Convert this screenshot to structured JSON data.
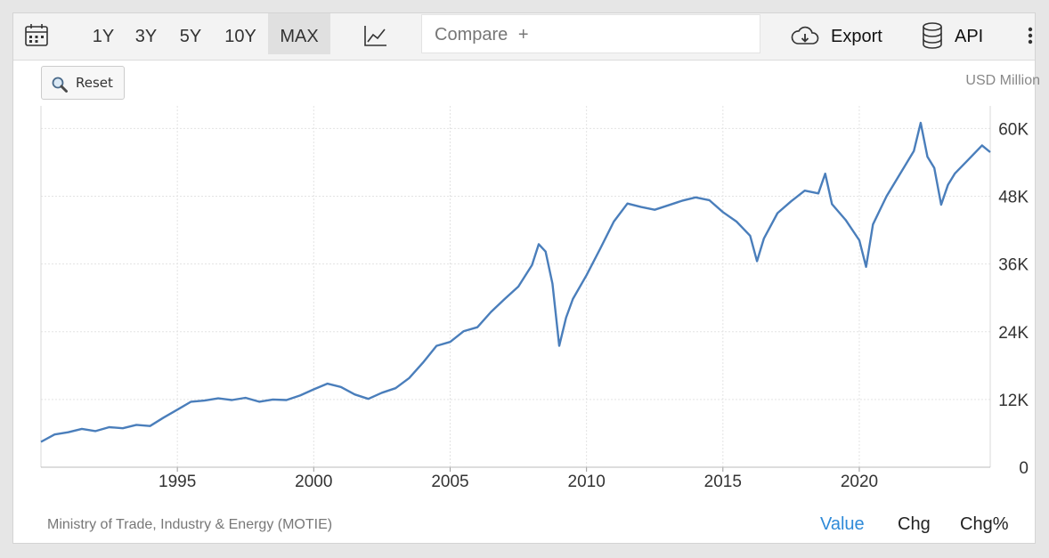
{
  "toolbar": {
    "calendar_icon": "calendar-icon",
    "ranges": [
      "1Y",
      "3Y",
      "5Y",
      "10Y",
      "MAX"
    ],
    "active_range": "MAX",
    "chart_type_icon": "line-chart-icon",
    "compare_label": "Compare",
    "compare_plus": "+",
    "export_label": "Export",
    "export_icon": "cloud-download-icon",
    "api_label": "API",
    "api_icon": "database-icon",
    "more_icon": "vertical-ellipsis-icon"
  },
  "reset_label": "Reset",
  "unit_label": "USD Million",
  "source": "Ministry of Trade, Industry & Energy (MOTIE)",
  "value_tabs": {
    "value": "Value",
    "chg": "Chg",
    "chg_pct": "Chg%",
    "active": "Value"
  },
  "colors": {
    "line": "#4a7ebb",
    "active_tab": "#2e8ad8",
    "grid": "#e3e3e3"
  },
  "chart_data": {
    "type": "line",
    "title": "",
    "xlabel": "",
    "ylabel": "",
    "ylim": [
      0,
      64000
    ],
    "xlim": [
      1990.0,
      2024.8
    ],
    "x_ticks": [
      1995,
      2000,
      2005,
      2010,
      2015,
      2020
    ],
    "y_ticks": [
      0,
      12000,
      24000,
      36000,
      48000,
      60000
    ],
    "y_tick_labels": [
      "0",
      "12K",
      "24K",
      "36K",
      "48K",
      "60K"
    ],
    "grid": true,
    "series": [
      {
        "x": [
          1990.0,
          1990.5,
          1991.0,
          1991.5,
          1992.0,
          1992.5,
          1993.0,
          1993.5,
          1994.0,
          1994.5,
          1995.0,
          1995.5,
          1996.0,
          1996.5,
          1997.0,
          1997.5,
          1998.0,
          1998.5,
          1999.0,
          1999.5,
          2000.0,
          2000.5,
          2001.0,
          2001.5,
          2002.0,
          2002.5,
          2003.0,
          2003.5,
          2004.0,
          2004.5,
          2005.0,
          2005.5,
          2006.0,
          2006.5,
          2007.0,
          2007.5,
          2008.0,
          2008.25,
          2008.5,
          2008.75,
          2009.0,
          2009.25,
          2009.5,
          2010.0,
          2010.5,
          2011.0,
          2011.5,
          2012.0,
          2012.5,
          2013.0,
          2013.5,
          2014.0,
          2014.5,
          2015.0,
          2015.5,
          2016.0,
          2016.25,
          2016.5,
          2017.0,
          2017.5,
          2018.0,
          2018.5,
          2018.75,
          2019.0,
          2019.5,
          2020.0,
          2020.25,
          2020.5,
          2020.75,
          2021.0,
          2021.5,
          2022.0,
          2022.25,
          2022.5,
          2022.75,
          2023.0,
          2023.25,
          2023.5,
          2024.0,
          2024.5,
          2024.8
        ],
        "y": [
          4500,
          5800,
          6200,
          6800,
          6400,
          7100,
          6900,
          7500,
          7300,
          8800,
          10200,
          11600,
          11800,
          12200,
          11900,
          12300,
          11600,
          12000,
          11900,
          12700,
          13800,
          14800,
          14200,
          12900,
          12100,
          13200,
          14000,
          15800,
          18500,
          21500,
          22200,
          24100,
          24800,
          27500,
          29800,
          32000,
          35800,
          39500,
          38200,
          32500,
          21500,
          26500,
          29800,
          34000,
          38700,
          43500,
          46700,
          46100,
          45600,
          46400,
          47200,
          47800,
          47300,
          45200,
          43500,
          41000,
          36500,
          40500,
          45000,
          47100,
          49000,
          48500,
          52000,
          46600,
          43800,
          40200,
          35500,
          43000,
          45500,
          48000,
          52000,
          56000,
          61000,
          55000,
          53000,
          46500,
          50000,
          52000,
          54500,
          57000,
          55800
        ]
      }
    ]
  }
}
